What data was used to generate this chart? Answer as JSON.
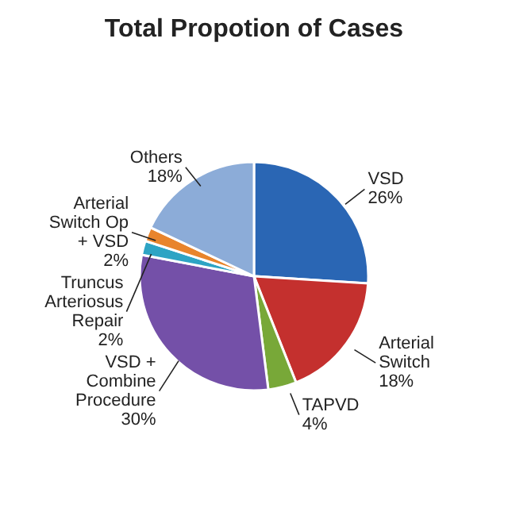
{
  "chart_data": {
    "type": "pie",
    "title": "Total Propotion of Cases",
    "categories": [
      "VSD",
      "Arterial Switch",
      "TAPVD",
      "VSD + Combine Procedure",
      "Truncus Arteriosus Repair",
      "Arterial Switch Op + VSD",
      "Others"
    ],
    "values": [
      26,
      18,
      4,
      30,
      2,
      2,
      18
    ],
    "value_labels": [
      "26%",
      "18%",
      "4%",
      "30%",
      "2%",
      "2%",
      "18%"
    ],
    "colors": [
      "#2a66b4",
      "#c4302e",
      "#78a838",
      "#7450a8",
      "#2ea4c4",
      "#e8842c",
      "#8cacd8"
    ]
  }
}
